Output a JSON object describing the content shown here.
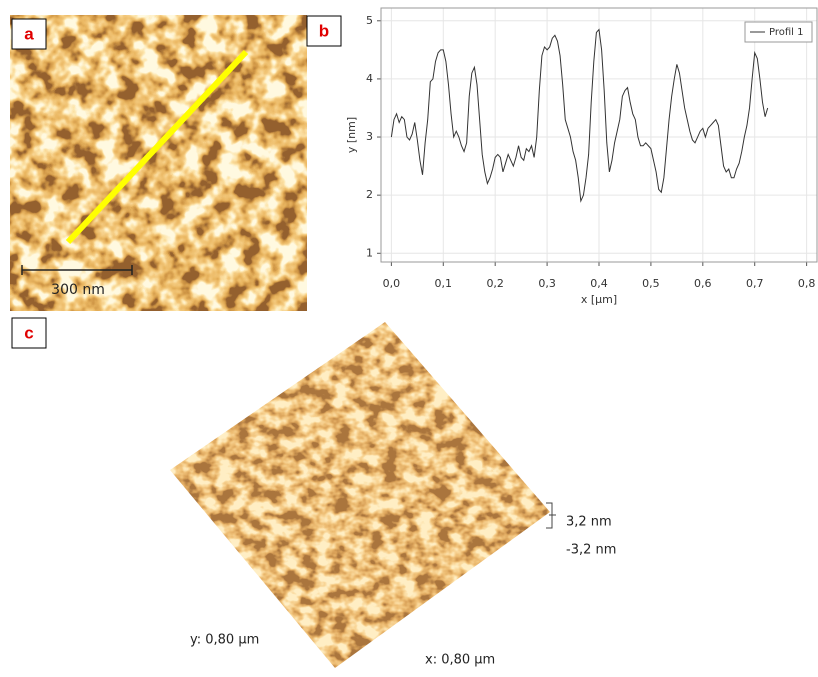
{
  "panels": {
    "a": {
      "label": "a",
      "scale_bar": "300 nm"
    },
    "b": {
      "label": "b"
    },
    "c": {
      "label": "c",
      "z_max": "3,2 nm",
      "z_min": "-3,2 nm",
      "y_size": "y: 0,80 µm",
      "x_size": "x: 0,80 µm"
    }
  },
  "chart_data": {
    "type": "line",
    "x_label": "x [µm]",
    "y_label": "y [nm]",
    "xlim": [
      -0.02,
      0.82
    ],
    "ylim": [
      0.85,
      5.22
    ],
    "xticks": [
      {
        "value": 0,
        "label": "0,0"
      },
      {
        "value": 0.1,
        "label": "0,1"
      },
      {
        "value": 0.2,
        "label": "0,2"
      },
      {
        "value": 0.3,
        "label": "0,3"
      },
      {
        "value": 0.4,
        "label": "0,4"
      },
      {
        "value": 0.5,
        "label": "0,5"
      },
      {
        "value": 0.6,
        "label": "0,6"
      },
      {
        "value": 0.7,
        "label": "0,7"
      },
      {
        "value": 0.8,
        "label": "0,8"
      }
    ],
    "yticks": [
      1,
      2,
      3,
      4,
      5
    ],
    "grid": true,
    "legend": "upper right",
    "x": [
      0,
      0.005,
      0.01,
      0.015,
      0.02,
      0.025,
      0.03,
      0.035,
      0.04,
      0.045,
      0.05,
      0.055,
      0.06,
      0.065,
      0.07,
      0.075,
      0.08,
      0.085,
      0.09,
      0.095,
      0.1,
      0.105,
      0.11,
      0.115,
      0.12,
      0.125,
      0.13,
      0.135,
      0.14,
      0.145,
      0.15,
      0.155,
      0.16,
      0.165,
      0.17,
      0.175,
      0.18,
      0.185,
      0.19,
      0.195,
      0.2,
      0.205,
      0.21,
      0.215,
      0.22,
      0.225,
      0.23,
      0.235,
      0.24,
      0.245,
      0.25,
      0.255,
      0.26,
      0.265,
      0.27,
      0.275,
      0.28,
      0.285,
      0.29,
      0.295,
      0.3,
      0.305,
      0.31,
      0.315,
      0.32,
      0.325,
      0.33,
      0.335,
      0.34,
      0.345,
      0.35,
      0.355,
      0.36,
      0.365,
      0.37,
      0.375,
      0.38,
      0.385,
      0.39,
      0.395,
      0.4,
      0.405,
      0.41,
      0.415,
      0.42,
      0.425,
      0.43,
      0.435,
      0.44,
      0.445,
      0.45,
      0.455,
      0.46,
      0.465,
      0.47,
      0.475,
      0.48,
      0.485,
      0.49,
      0.495,
      0.5,
      0.505,
      0.51,
      0.515,
      0.52,
      0.525,
      0.53,
      0.535,
      0.54,
      0.545,
      0.55,
      0.555,
      0.56,
      0.565,
      0.57,
      0.575,
      0.58,
      0.585,
      0.59,
      0.595,
      0.6,
      0.605,
      0.61,
      0.615,
      0.62,
      0.625,
      0.63,
      0.635,
      0.64,
      0.645,
      0.65,
      0.655,
      0.66,
      0.665,
      0.67,
      0.675,
      0.68,
      0.685,
      0.69,
      0.695,
      0.7,
      0.705,
      0.71,
      0.715,
      0.72,
      0.725
    ],
    "series": [
      {
        "name": "Profil 1",
        "color": "#333333",
        "values": [
          3.0,
          3.3,
          3.4,
          3.25,
          3.35,
          3.3,
          3.0,
          2.95,
          3.05,
          3.25,
          2.95,
          2.6,
          2.35,
          2.9,
          3.3,
          3.95,
          4.0,
          4.3,
          4.45,
          4.5,
          4.5,
          4.3,
          3.9,
          3.4,
          3.0,
          3.1,
          3.0,
          2.85,
          2.75,
          2.9,
          3.7,
          4.1,
          4.2,
          3.9,
          3.3,
          2.7,
          2.4,
          2.2,
          2.3,
          2.45,
          2.65,
          2.7,
          2.65,
          2.4,
          2.55,
          2.7,
          2.6,
          2.5,
          2.65,
          2.85,
          2.65,
          2.6,
          2.8,
          2.75,
          2.85,
          2.65,
          3.0,
          3.8,
          4.4,
          4.55,
          4.5,
          4.55,
          4.7,
          4.75,
          4.65,
          4.4,
          3.9,
          3.3,
          3.15,
          3.0,
          2.75,
          2.6,
          2.3,
          1.9,
          2.0,
          2.3,
          2.7,
          3.6,
          4.3,
          4.8,
          4.85,
          4.5,
          3.8,
          2.9,
          2.4,
          2.6,
          2.9,
          3.1,
          3.3,
          3.7,
          3.8,
          3.85,
          3.6,
          3.4,
          3.3,
          3.0,
          2.85,
          2.85,
          2.9,
          2.85,
          2.8,
          2.6,
          2.4,
          2.1,
          2.05,
          2.3,
          2.8,
          3.3,
          3.7,
          4.0,
          4.25,
          4.1,
          3.8,
          3.5,
          3.3,
          3.1,
          2.95,
          2.9,
          3.0,
          3.1,
          3.15,
          3.0,
          3.15,
          3.2,
          3.25,
          3.3,
          3.2,
          2.85,
          2.5,
          2.4,
          2.45,
          2.3,
          2.3,
          2.45,
          2.55,
          2.75,
          3.0,
          3.2,
          3.5,
          4.0,
          4.45,
          4.35,
          4.0,
          3.6,
          3.35,
          3.5
        ]
      }
    ]
  }
}
